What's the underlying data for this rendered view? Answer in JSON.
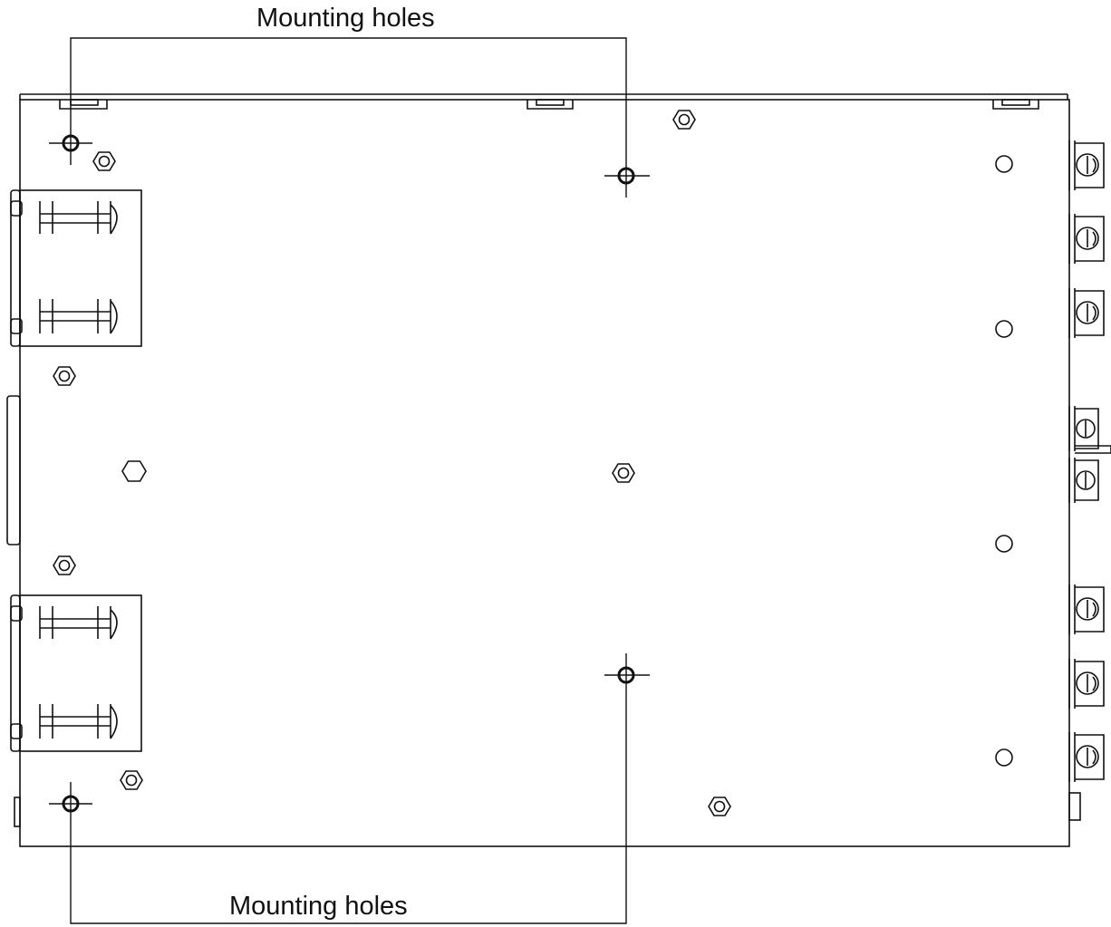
{
  "callouts": {
    "top_label": "Mounting holes",
    "bottom_label": "Mounting holes"
  },
  "colors": {
    "line": "#111111",
    "background": "#ffffff"
  }
}
